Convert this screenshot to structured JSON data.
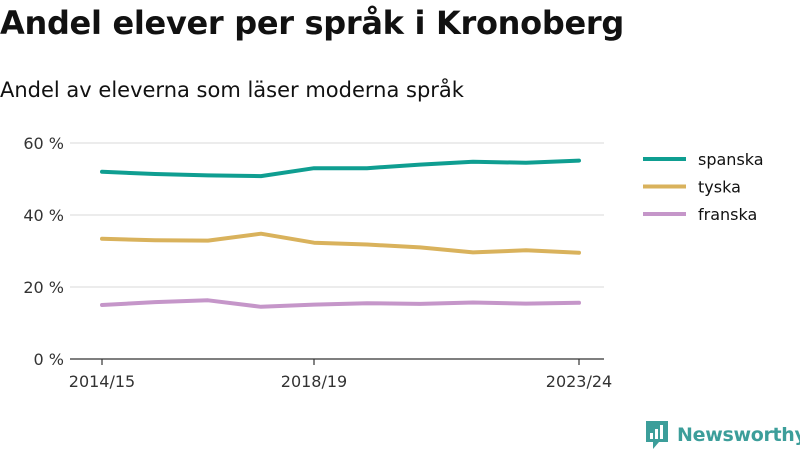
{
  "title": "Andel elever per språk i Kronoberg",
  "subtitle": "Andel av eleverna som läser moderna språk",
  "brand": "Newsworthy",
  "colors": {
    "spanska": "#0f9e91",
    "tyska": "#d9b25c",
    "franska": "#c596c9",
    "grid": "#d9d9d9",
    "axis": "#333333",
    "brand": "#3c9e9a"
  },
  "chart_data": {
    "type": "line",
    "x": [
      "2014/15",
      "2015/16",
      "2016/17",
      "2017/18",
      "2018/19",
      "2019/20",
      "2020/21",
      "2021/22",
      "2022/23",
      "2023/24"
    ],
    "x_tick_labels": [
      "2014/15",
      "2018/19",
      "2023/24"
    ],
    "y_ticks": [
      0,
      20,
      40,
      60
    ],
    "y_tick_labels": [
      "0 %",
      "20 %",
      "40 %",
      "60 %"
    ],
    "ylim": [
      0,
      60
    ],
    "grid": true,
    "legend_position": "right",
    "series": [
      {
        "name": "spanska",
        "color": "#0f9e91",
        "values": [
          52,
          51.4,
          51,
          50.8,
          53,
          53,
          54,
          54.8,
          54.5,
          55.1
        ]
      },
      {
        "name": "tyska",
        "color": "#d9b25c",
        "values": [
          33.4,
          33,
          32.9,
          34.8,
          32.3,
          31.8,
          31,
          29.6,
          30.2,
          29.5
        ]
      },
      {
        "name": "franska",
        "color": "#c596c9",
        "values": [
          15,
          15.8,
          16.3,
          14.5,
          15.1,
          15.5,
          15.3,
          15.7,
          15.4,
          15.6
        ]
      }
    ]
  }
}
